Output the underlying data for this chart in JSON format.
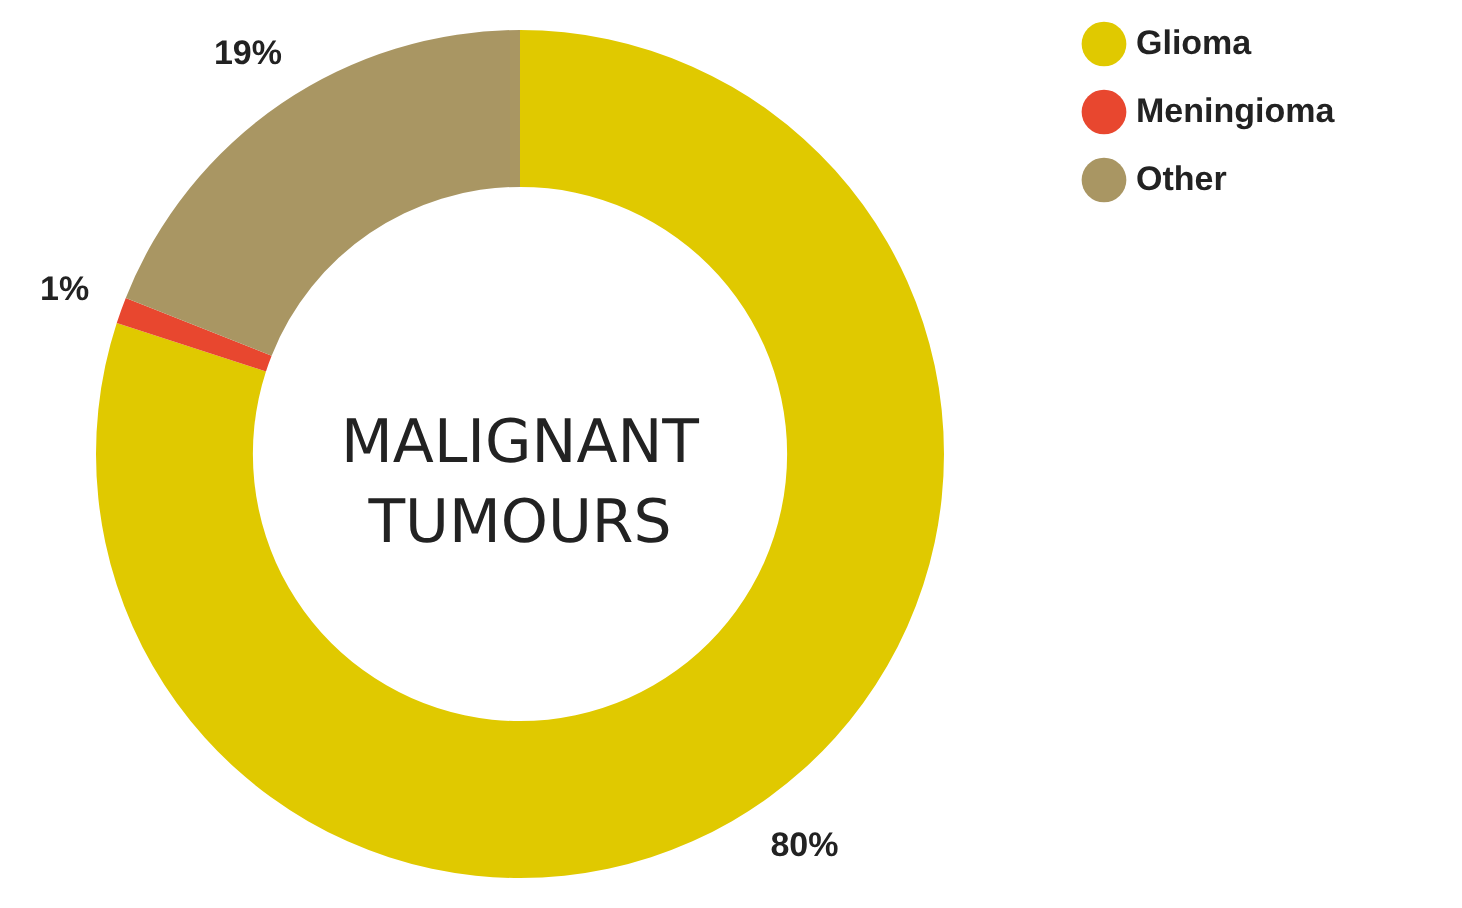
{
  "chart_data": {
    "type": "donut",
    "categories": [
      "Glioma",
      "Meningioma",
      "Other"
    ],
    "values": [
      80,
      1,
      19
    ],
    "colors": [
      "#e0c900",
      "#e8472f",
      "#a99663"
    ],
    "value_labels": [
      "80%",
      "1%",
      "19%"
    ],
    "legend": "top right",
    "annotations": [
      "MALIGNANT TUMOURS"
    ]
  }
}
